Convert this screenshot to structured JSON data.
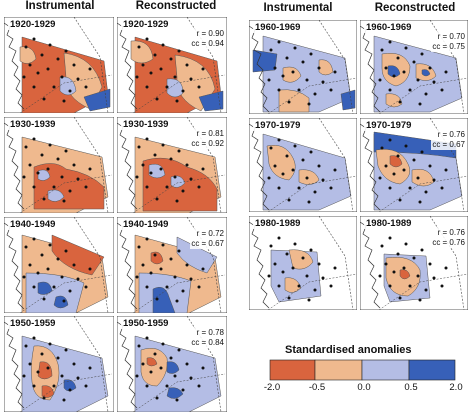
{
  "headers": {
    "left_instrumental": "Instrumental",
    "left_reconstructed": "Reconstructed",
    "right_instrumental": "Instrumental",
    "right_reconstructed": "Reconstructed"
  },
  "legend": {
    "title": "Standardised anomalies",
    "ticks": [
      "-2.0",
      "-0.5",
      "0.0",
      "0.5",
      "2.0"
    ],
    "classes": [
      {
        "range": "-2.0 to -0.5",
        "color": "#d9643e"
      },
      {
        "range": "-0.5 to 0.0",
        "color": "#efb98e"
      },
      {
        "range": "0.0 to 0.5",
        "color": "#b4bde5"
      },
      {
        "range": "0.5 to 2.0",
        "color": "#3760b8"
      }
    ]
  },
  "panels": [
    {
      "id": "p1920i",
      "decade": "1920-1929",
      "type": "instrumental"
    },
    {
      "id": "p1920r",
      "decade": "1920-1929",
      "type": "reconstructed",
      "r": "r = 0.90",
      "cc": "cc = 0.94"
    },
    {
      "id": "p1930i",
      "decade": "1930-1939",
      "type": "instrumental"
    },
    {
      "id": "p1930r",
      "decade": "1930-1939",
      "type": "reconstructed",
      "r": "r = 0.81",
      "cc": "cc = 0.92"
    },
    {
      "id": "p1940i",
      "decade": "1940-1949",
      "type": "instrumental"
    },
    {
      "id": "p1940r",
      "decade": "1940-1949",
      "type": "reconstructed",
      "r": "r = 0.72",
      "cc": "cc = 0.67"
    },
    {
      "id": "p1950i",
      "decade": "1950-1959",
      "type": "instrumental"
    },
    {
      "id": "p1950r",
      "decade": "1950-1959",
      "type": "reconstructed",
      "r": "r = 0.78",
      "cc": "cc = 0.84"
    },
    {
      "id": "p1960i",
      "decade": "1960-1969",
      "type": "instrumental"
    },
    {
      "id": "p1960r",
      "decade": "1960-1969",
      "type": "reconstructed",
      "r": "r = 0.70",
      "cc": "cc = 0.75"
    },
    {
      "id": "p1970i",
      "decade": "1970-1979",
      "type": "instrumental"
    },
    {
      "id": "p1970r",
      "decade": "1970-1979",
      "type": "reconstructed",
      "r": "r = 0.76",
      "cc": "cc = 0.67"
    },
    {
      "id": "p1980i",
      "decade": "1980-1989",
      "type": "instrumental"
    },
    {
      "id": "p1980r",
      "decade": "1980-1989",
      "type": "reconstructed",
      "r": "r = 0.76",
      "cc": "cc = 0.76"
    }
  ]
}
